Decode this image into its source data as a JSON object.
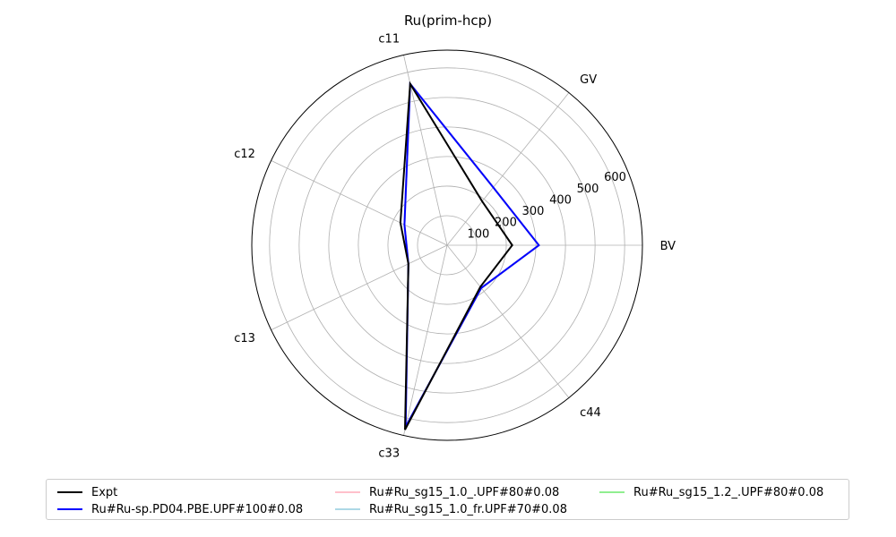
{
  "chart_data": {
    "type": "radar",
    "title": "Ru(prim-hcp)",
    "axes": [
      "BV",
      "GV",
      "c11",
      "c12",
      "c13",
      "c33",
      "c44"
    ],
    "radial_ticks": [
      100,
      200,
      300,
      400,
      500,
      600
    ],
    "rlim": [
      0,
      660
    ],
    "grid": true,
    "legend_position": "bottom",
    "series": [
      {
        "name": "Expt",
        "color": "#000000",
        "values": [
          220,
          190,
          560,
          175,
          145,
          640,
          180
        ]
      },
      {
        "name": "Ru#Ru-sp.PD04.PBE.UPF#100#0.08",
        "color": "#0000ff",
        "values": [
          310,
          250,
          560,
          160,
          145,
          630,
          185
        ]
      },
      {
        "name": "Ru#Ru_sg15_1.0_.UPF#80#0.08",
        "color": "#ffc0cb",
        "values": [
          310,
          250,
          560,
          160,
          145,
          630,
          185
        ]
      },
      {
        "name": "Ru#Ru_sg15_1.0_fr.UPF#70#0.08",
        "color": "#add8e6",
        "values": [
          310,
          250,
          560,
          160,
          145,
          630,
          185
        ]
      },
      {
        "name": "Ru#Ru_sg15_1.2_.UPF#80#0.08",
        "color": "#90ee90",
        "values": [
          310,
          250,
          560,
          160,
          145,
          630,
          185
        ]
      }
    ]
  }
}
